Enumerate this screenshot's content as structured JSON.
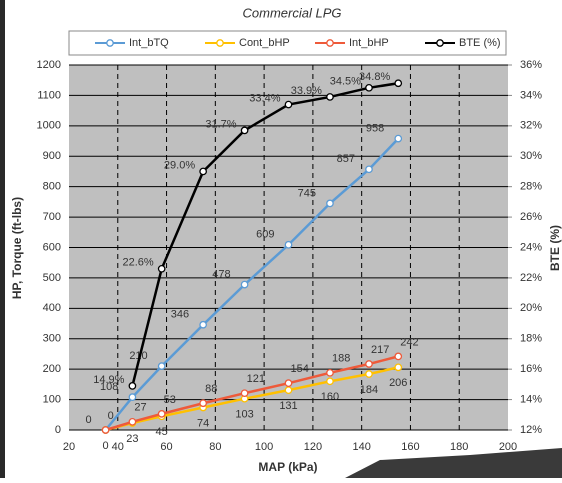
{
  "chart_data": {
    "type": "line",
    "title": "Commercial LPG",
    "x_label": "MAP (kPa)",
    "y_label": "HP, Torque (ft-lbs)",
    "y2_label": "BTE (%)",
    "x": [
      35,
      46,
      58,
      75,
      92,
      110,
      127,
      143,
      155
    ],
    "xlim": [
      20,
      200
    ],
    "xticks": [
      20,
      40,
      60,
      80,
      100,
      120,
      140,
      160,
      180,
      200
    ],
    "ylim": [
      0,
      1200
    ],
    "yticks": [
      0,
      100,
      200,
      300,
      400,
      500,
      600,
      700,
      800,
      900,
      1000,
      1100,
      1200
    ],
    "y2lim": [
      12,
      36
    ],
    "y2ticks": [
      {
        "value": 12,
        "label": "12%"
      },
      {
        "value": 14,
        "label": "14%"
      },
      {
        "value": 16,
        "label": "16%"
      },
      {
        "value": 18,
        "label": "18%"
      },
      {
        "value": 20,
        "label": "20%"
      },
      {
        "value": 22,
        "label": "22%"
      },
      {
        "value": 24,
        "label": "24%"
      },
      {
        "value": 26,
        "label": "26%"
      },
      {
        "value": 28,
        "label": "28%"
      },
      {
        "value": 30,
        "label": "30%"
      },
      {
        "value": 32,
        "label": "32%"
      },
      {
        "value": 34,
        "label": "34%"
      },
      {
        "value": 36,
        "label": "36%"
      }
    ],
    "grid": true,
    "legend": "top",
    "series": [
      {
        "name": "Int_bTQ",
        "color": "#5b9bd5",
        "values": [
          0,
          108,
          210,
          346,
          478,
          609,
          745,
          857,
          958
        ]
      },
      {
        "name": "Cont_bHP",
        "color": "#ffc000",
        "values": [
          0,
          23,
          45,
          74,
          103,
          131,
          160,
          184,
          206
        ]
      },
      {
        "name": "Int_bHP",
        "color": "#ee5a3a",
        "values": [
          0,
          27,
          53,
          88,
          121,
          154,
          188,
          217,
          242
        ]
      },
      {
        "name": "BTE (%)",
        "color": "#000000",
        "axis": "y2",
        "values": [
          null,
          14.9,
          22.6,
          29.0,
          31.7,
          33.4,
          33.9,
          34.5,
          34.8
        ],
        "value_labels": [
          null,
          "14.9%",
          "22.6%",
          "29.0%",
          "31.7%",
          "33.4%",
          "33.9%",
          "34.5%",
          "34.8%"
        ]
      }
    ]
  }
}
